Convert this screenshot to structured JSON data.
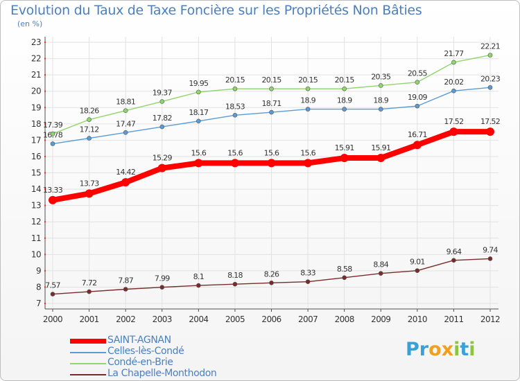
{
  "title": "Evolution du Taux de Taxe Foncière sur les Propriétés Non Bâties",
  "unit_label": "(en %)",
  "logo": {
    "text": "Proxiti",
    "letters": [
      "P",
      "r",
      "o",
      "x",
      "i",
      "t",
      "i"
    ],
    "colors": [
      "#3aa0d8",
      "#3aa0d8",
      "#f0a020",
      "#f0a020",
      "#8cc63e",
      "#3aa0d8",
      "#8cc63e"
    ]
  },
  "chart_data": {
    "type": "line",
    "x": [
      2000,
      2001,
      2002,
      2003,
      2004,
      2005,
      2006,
      2007,
      2008,
      2009,
      2010,
      2011,
      2012
    ],
    "ylim": [
      7,
      23
    ],
    "yticks": [
      7,
      8,
      9,
      10,
      11,
      12,
      13,
      14,
      15,
      16,
      17,
      18,
      19,
      20,
      21,
      22,
      23
    ],
    "grid": true,
    "legend_position": "bottom-left",
    "series": [
      {
        "name": "SAINT-AGNAN",
        "color": "#ff0000",
        "emphasis": true,
        "values": [
          13.33,
          13.73,
          14.42,
          15.29,
          15.6,
          15.6,
          15.6,
          15.6,
          15.91,
          15.91,
          16.71,
          17.52,
          17.52
        ],
        "labels": [
          "13.33",
          "13.73",
          "14.42",
          "15.29",
          "15.6",
          "15.6",
          "15.6",
          "15.6",
          "15.91",
          "15.91",
          "16.71",
          "17.52",
          "17.52"
        ]
      },
      {
        "name": "Celles-lès-Condé",
        "color": "#5b9bd5",
        "values": [
          16.78,
          17.12,
          17.47,
          17.82,
          18.17,
          18.53,
          18.71,
          18.9,
          18.9,
          18.9,
          19.09,
          20.02,
          20.23
        ],
        "labels": [
          "16.78",
          "17.12",
          "17.47",
          "17.82",
          "18.17",
          "18.53",
          "18.71",
          "18.9",
          "18.9",
          "18.9",
          "19.09",
          "20.02",
          "20.23"
        ]
      },
      {
        "name": "Condé-en-Brie",
        "color": "#8fd66b",
        "values": [
          17.39,
          18.26,
          18.81,
          19.37,
          19.95,
          20.15,
          20.15,
          20.15,
          20.15,
          20.35,
          20.55,
          21.77,
          22.21
        ],
        "labels": [
          "17.39",
          "18.26",
          "18.81",
          "19.37",
          "19.95",
          "20.15",
          "20.15",
          "20.15",
          "20.15",
          "20.35",
          "20.55",
          "21.77",
          "22.21"
        ]
      },
      {
        "name": "La Chapelle-Monthodon",
        "color": "#7a2a2a",
        "values": [
          7.57,
          7.72,
          7.87,
          7.99,
          8.1,
          8.18,
          8.26,
          8.33,
          8.58,
          8.84,
          9.01,
          9.64,
          9.74
        ],
        "labels": [
          "7.57",
          "7.72",
          "7.87",
          "7.99",
          "8.1",
          "8.18",
          "8.26",
          "8.33",
          "8.58",
          "8.84",
          "9.01",
          "9.64",
          "9.74"
        ]
      }
    ]
  }
}
